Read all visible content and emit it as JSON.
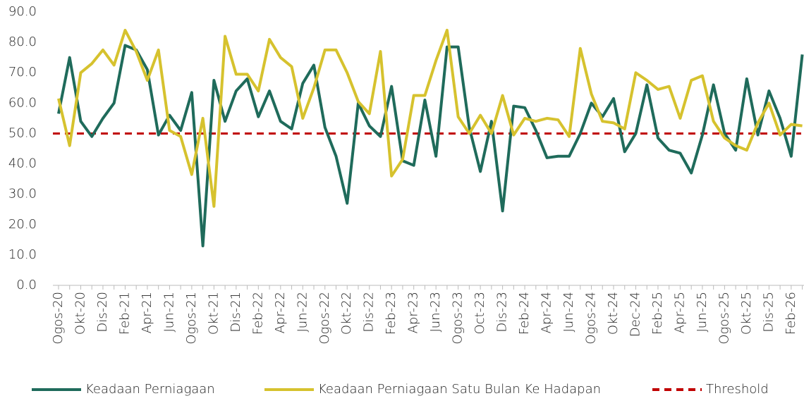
{
  "chart_data": {
    "type": "line",
    "categories": [
      "Ogos-20",
      null,
      "Okt-20",
      null,
      "Dis-20",
      null,
      "Feb-21",
      null,
      "Apr-21",
      null,
      "Jun-21",
      null,
      "Ogos-21",
      null,
      "Okt-21",
      null,
      "Dis-21",
      null,
      "Feb-22",
      null,
      "Apr-22",
      null,
      "Jun-22",
      null,
      "Ogos-22",
      null,
      "Okt-22",
      null,
      "Dis-22",
      null,
      "Feb-23",
      null,
      "Apr-23",
      null,
      "Jun-23",
      null,
      "Ogos-23",
      null,
      "Oct-23",
      null,
      "Dis-23",
      null,
      "Feb-24",
      null,
      "Apr-24",
      null,
      "Jun-24",
      null,
      "Ogos-24",
      null,
      "Okt-24",
      null,
      "Dec-24",
      null,
      "Feb-25",
      null,
      "Apr-25",
      null,
      "Jun-25",
      null,
      "Ogos-25",
      null,
      "Okt-25",
      null,
      "Dis-25",
      null,
      "Feb-26",
      null
    ],
    "series": [
      {
        "name": "Keadaan Perniagaan",
        "color": "#1f6b5b",
        "values": [
          56.5,
          75,
          54,
          49,
          55,
          60,
          79,
          77.5,
          71,
          49.5,
          56,
          51,
          63.5,
          13,
          67.5,
          54,
          64,
          68,
          55.5,
          64,
          54,
          51.5,
          66.5,
          72.5,
          52,
          42.5,
          27,
          60,
          52.5,
          49,
          65.5,
          41,
          39.5,
          61,
          42.5,
          78.5,
          78.5,
          52,
          37.5,
          54,
          24.5,
          59,
          58.5,
          51,
          42,
          42.5,
          42.5,
          50,
          60,
          55.5,
          61.5,
          44,
          50,
          66,
          48.5,
          44.5,
          43.5,
          37,
          49.5,
          66,
          50,
          44.5,
          68,
          49.5,
          64,
          55,
          42.5,
          76
        ]
      },
      {
        "name": "Keadaan Perniagaan Satu Bulan Ke Hadapan",
        "color": "#d6c22e",
        "values": [
          61.5,
          46,
          70,
          73,
          77.5,
          72.5,
          84,
          77,
          67.5,
          77.5,
          51,
          49,
          36.5,
          55,
          26,
          82,
          69.5,
          69.5,
          64,
          81,
          75,
          72,
          55,
          65,
          77.5,
          77.5,
          70,
          60.5,
          56.5,
          77,
          36,
          41.5,
          62.5,
          62.5,
          74,
          84,
          55.5,
          50,
          56,
          50,
          62.5,
          49.5,
          55,
          54,
          55,
          54.5,
          49,
          78,
          63,
          54,
          53.5,
          51.5,
          70,
          67.5,
          64.5,
          65.5,
          55,
          67.5,
          69,
          54,
          48.5,
          46,
          44.5,
          53.5,
          60,
          49.5,
          53,
          52.5
        ]
      }
    ],
    "threshold": {
      "name": "Threshold",
      "value": 50,
      "color": "#c00000"
    },
    "ylim": [
      0,
      90
    ],
    "yticks": [
      {
        "value": 0,
        "label": "0.0"
      },
      {
        "value": 10,
        "label": "10.0"
      },
      {
        "value": 20,
        "label": "20.0"
      },
      {
        "value": 30,
        "label": "30.0"
      },
      {
        "value": 40,
        "label": "40.0"
      },
      {
        "value": 50,
        "label": "50.0"
      },
      {
        "value": 60,
        "label": "60.0"
      },
      {
        "value": 70,
        "label": "70.0"
      },
      {
        "value": 80,
        "label": "80.0"
      },
      {
        "value": 90,
        "label": "90.0"
      }
    ],
    "grid": false,
    "legend": "bottom"
  }
}
